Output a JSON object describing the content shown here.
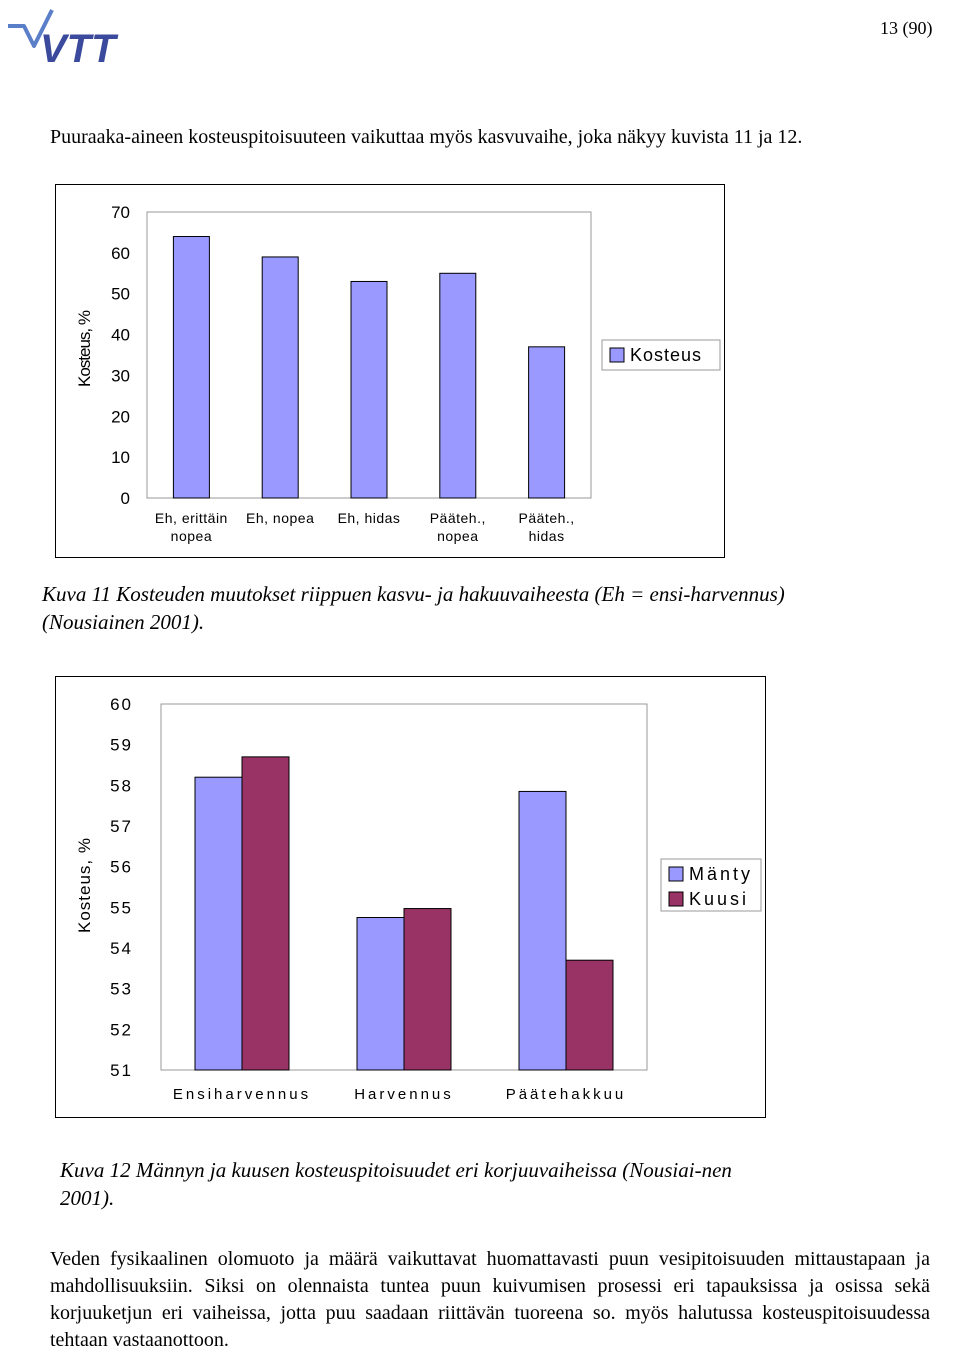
{
  "header": {
    "page_number": "13 (90)",
    "logo_text": "VTT",
    "logo_color": "#3b4a9c"
  },
  "intro_text": "Puuraaka-aineen kosteuspitoisuuteen vaikuttaa myös kasvuvaihe, joka näkyy kuvista 11 ja 12.",
  "chart_data": [
    {
      "type": "bar",
      "ylabel": "Kosteus, %",
      "ylim": [
        0,
        70
      ],
      "yticks": [
        0,
        10,
        20,
        30,
        40,
        50,
        60,
        70
      ],
      "categories": [
        [
          "Eh, erittäin",
          "nopea"
        ],
        [
          "Eh, nopea"
        ],
        [
          "Eh, hidas"
        ],
        [
          "Pääteh.,",
          "nopea"
        ],
        [
          "Pääteh.,",
          "hidas"
        ]
      ],
      "series": [
        {
          "name": "Kosteus",
          "values": [
            64,
            59,
            53,
            55,
            37
          ],
          "color": "#9999ff"
        }
      ],
      "legend_position": "right",
      "grid": false
    },
    {
      "type": "bar",
      "ylabel": "Kosteus, %",
      "ylim": [
        51,
        60
      ],
      "yticks": [
        51,
        52,
        53,
        54,
        55,
        56,
        57,
        58,
        59,
        60
      ],
      "categories": [
        "Ensiharvennus",
        "Harvennus",
        "Päätehakkuu"
      ],
      "series": [
        {
          "name": "Mänty",
          "values": [
            58.2,
            54.75,
            57.85
          ],
          "color": "#9999ff"
        },
        {
          "name": "Kuusi",
          "values": [
            58.7,
            54.97,
            53.7
          ],
          "color": "#993366"
        }
      ],
      "legend_position": "right",
      "grid": false
    }
  ],
  "captions": {
    "fig11": "Kuva 11 Kosteuden muutokset riippuen kasvu- ja hakuuvaiheesta (Eh = ensi-harvennus) (Nousiainen 2001).",
    "fig12": "Kuva 12 Männyn ja kuusen kosteuspitoisuudet eri korjuuvaiheissa (Nousiai-nen 2001)."
  },
  "closing_text": "Veden fysikaalinen olomuoto ja määrä vaikuttavat huomattavasti puun vesipitoisuuden mittaustapaan ja mahdollisuuksiin. Siksi on olennaista tuntea puun kuivumisen prosessi eri tapauksissa ja osissa sekä korjuuketjun eri vaiheissa, jotta puu saadaan riittävän tuoreena so. myös halutussa kosteuspitoisuudessa tehtaan vastaanottoon."
}
